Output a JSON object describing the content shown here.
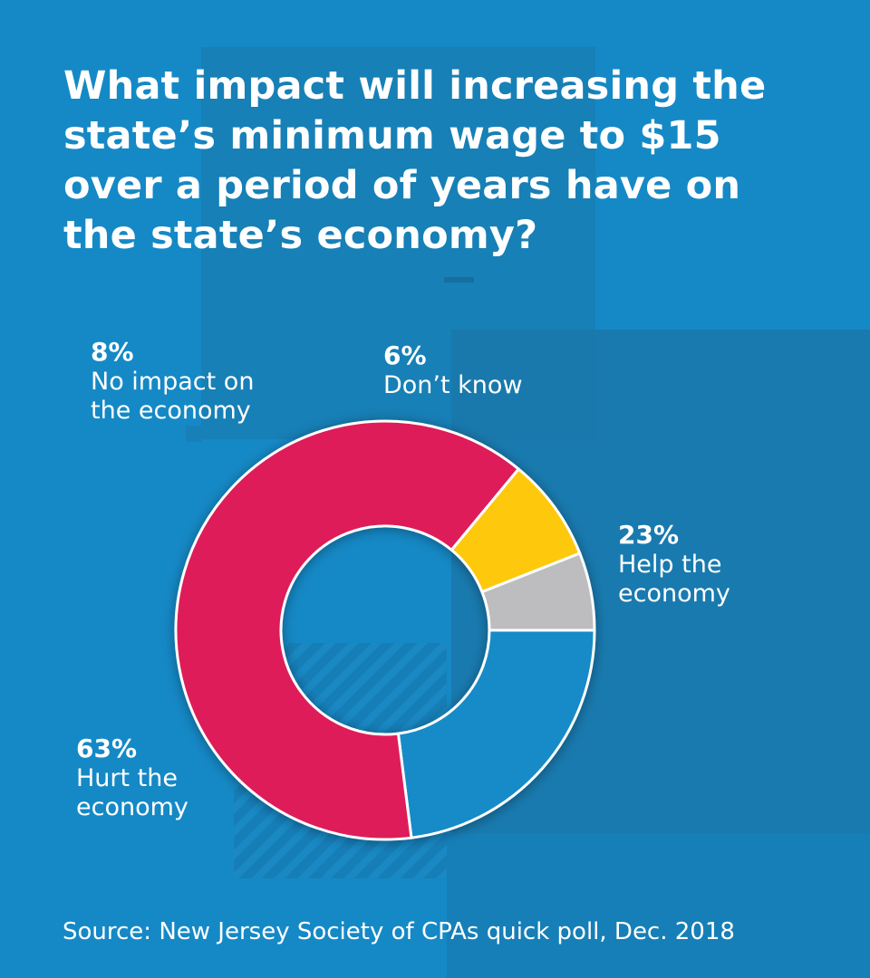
{
  "colors": {
    "background": "#1589c6",
    "overlay_dark": "#1a78aa",
    "help": "#168bc7",
    "hurt": "#de1f5a",
    "no_impact": "#fec910",
    "dont_know": "#bdbdbf",
    "slice_border": "#ffffff"
  },
  "title": "What impact will increasing the state’s minimum wage to $15 over a period of years have on the state’s economy?",
  "source": "Source: New Jersey Society of CPAs quick poll, Dec. 2018",
  "chart_data": {
    "type": "pie",
    "style": "donut",
    "title": "What impact will increasing the state’s minimum wage to $15 over a period of years have on the state’s economy?",
    "unit": "%",
    "slices": [
      {
        "label": "Help the economy",
        "value": 23,
        "value_label": "23%",
        "color": "#168bc7"
      },
      {
        "label": "Hurt the economy",
        "value": 63,
        "value_label": "63%",
        "color": "#de1f5a"
      },
      {
        "label": "No impact on the economy",
        "value": 8,
        "value_label": "8%",
        "color": "#fec910"
      },
      {
        "label": "Don’t know",
        "value": 6,
        "value_label": "6%",
        "color": "#bdbdbf"
      }
    ],
    "labels": {
      "help": {
        "pct": "23%",
        "text": "Help the\neconomy"
      },
      "hurt": {
        "pct": "63%",
        "text": "Hurt the\neconomy"
      },
      "no_impact": {
        "pct": "8%",
        "text": "No impact on\nthe economy"
      },
      "dont_know": {
        "pct": "6%",
        "text": "Don’t know"
      }
    }
  }
}
